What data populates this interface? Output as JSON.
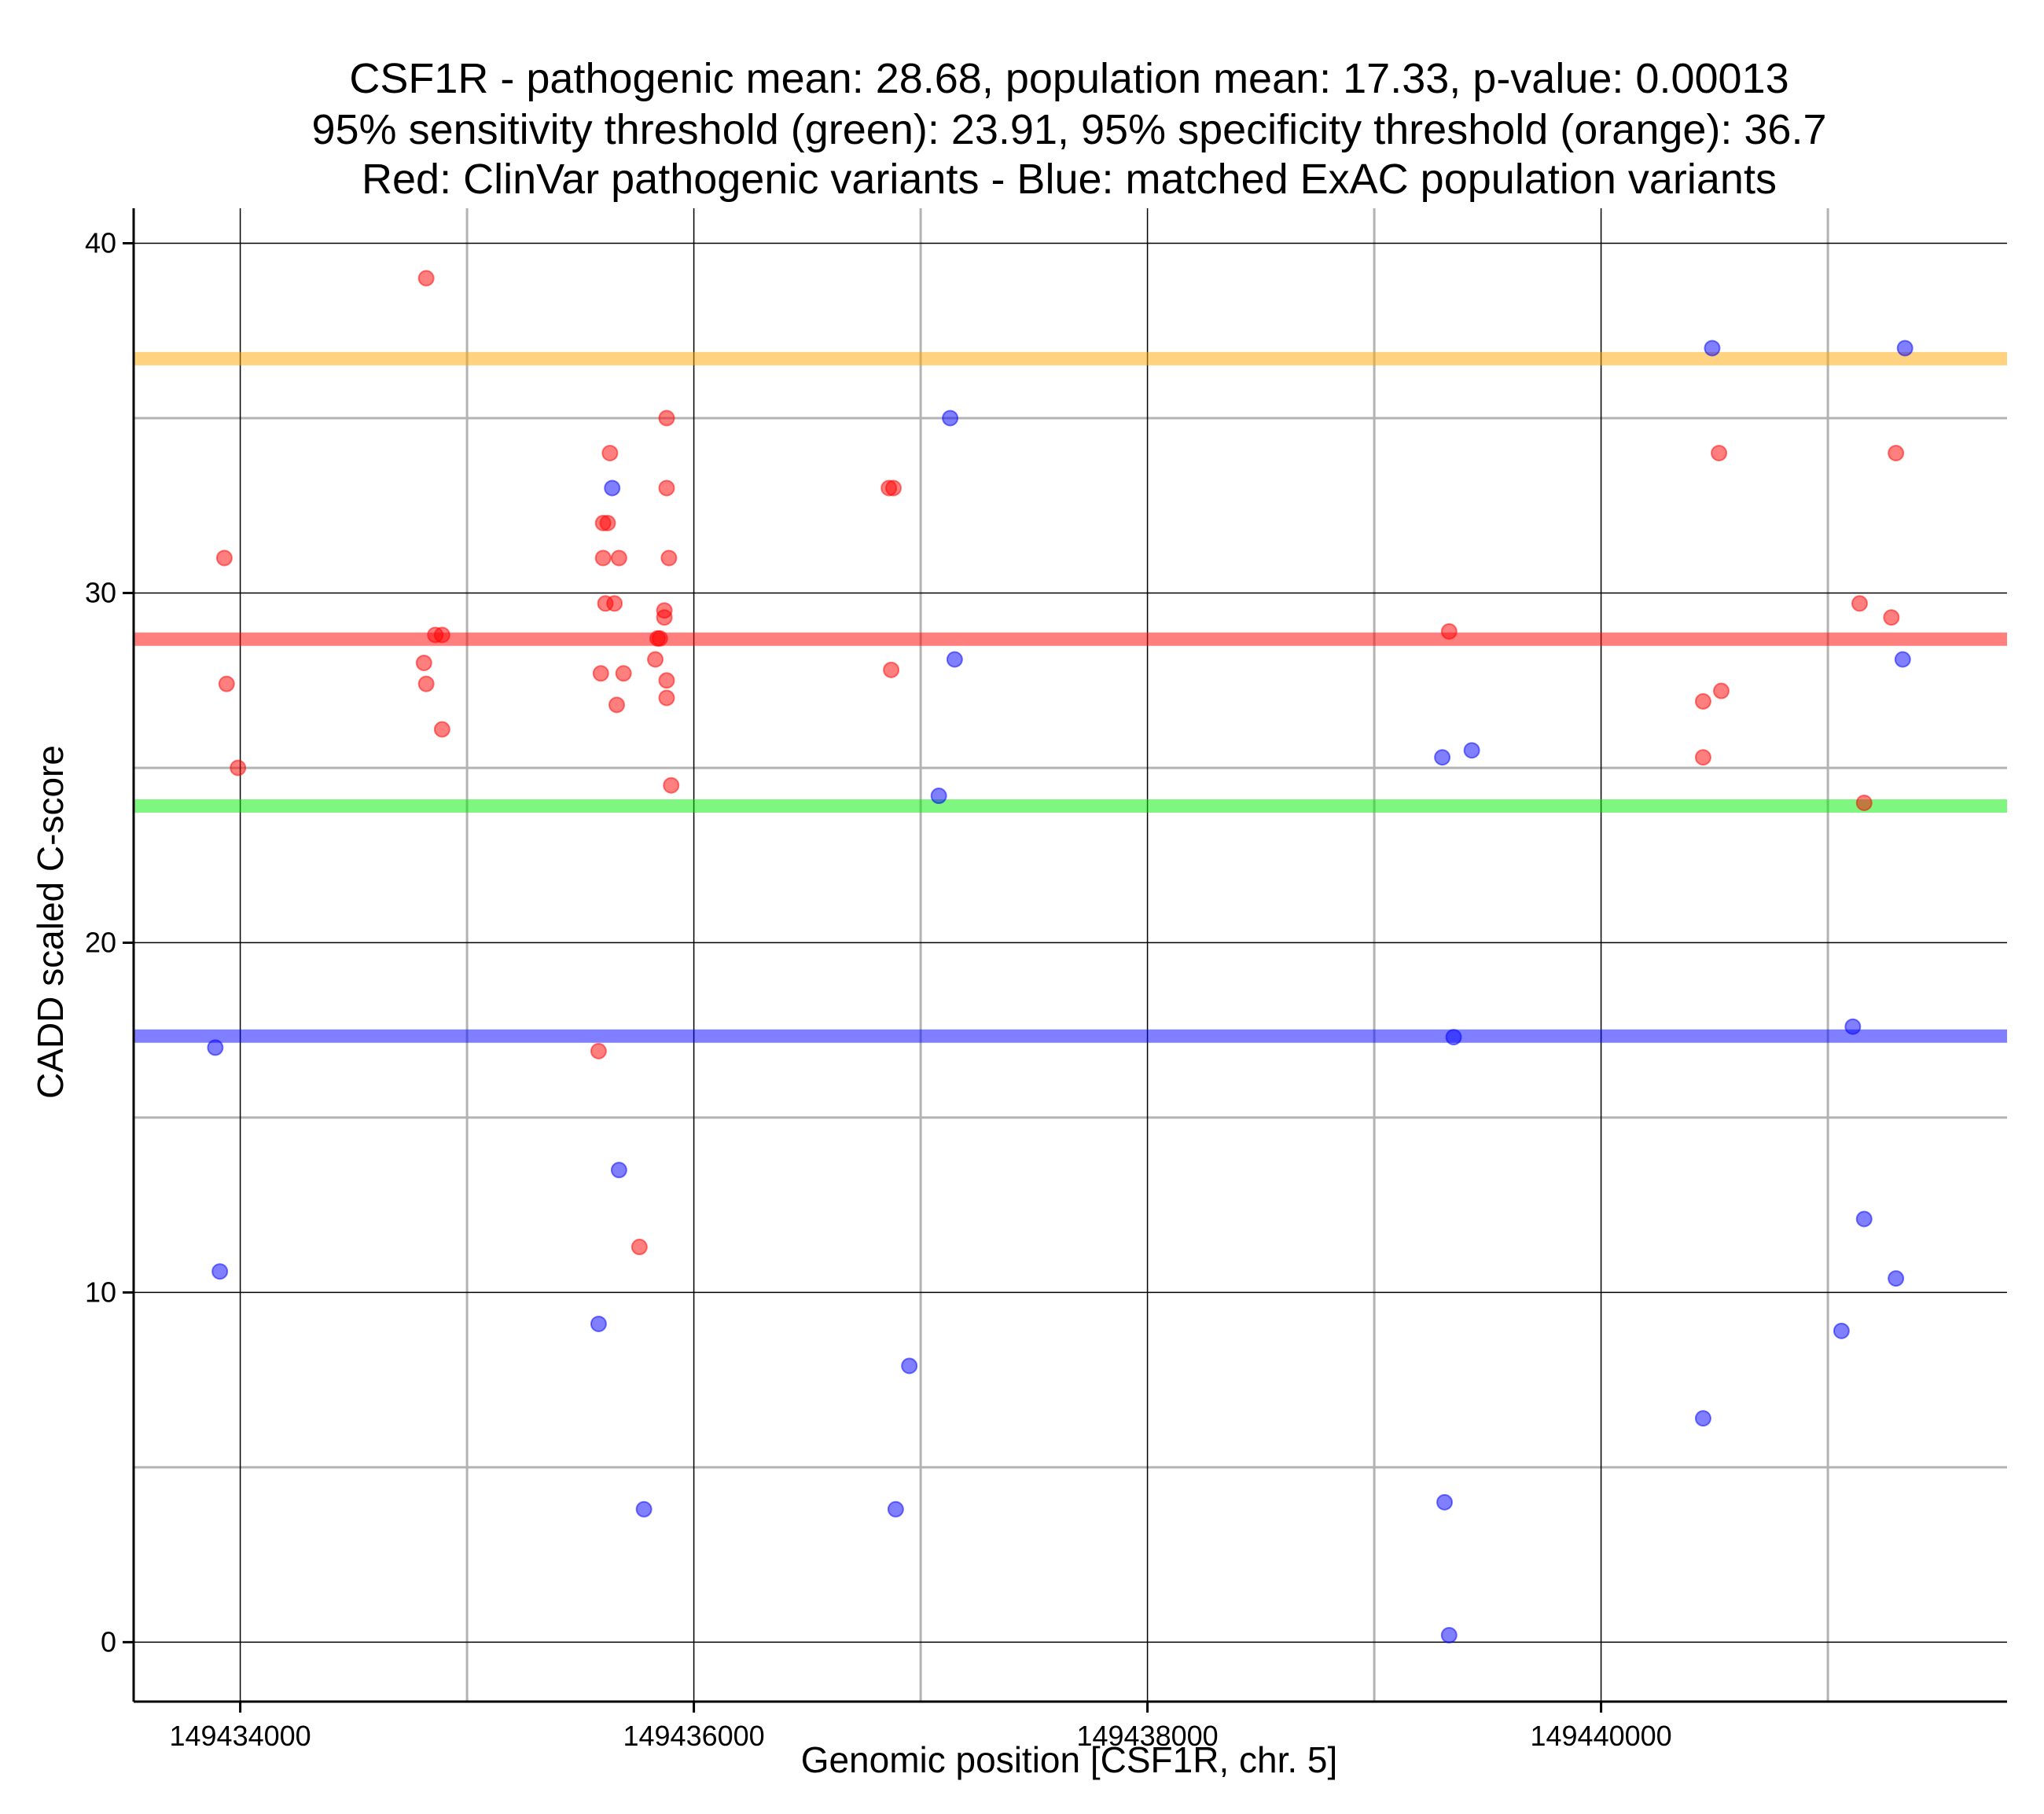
{
  "chart_data": {
    "type": "scatter",
    "title_lines": [
      "CSF1R - pathogenic mean: 28.68, population mean: 17.33, p-value: 0.00013",
      "95% sensitivity threshold (green): 23.91, 95% specificity threshold (orange): 36.7",
      "Red: ClinVar pathogenic variants - Blue: matched ExAC population variants"
    ],
    "xlabel": "Genomic position [CSF1R, chr. 5]",
    "ylabel": "CADD scaled C-score",
    "xlim": [
      149433530,
      149441790
    ],
    "ylim": [
      -1.7,
      41.0
    ],
    "x_ticks": [
      149434000,
      149436000,
      149438000,
      149440000
    ],
    "x_tick_labels": [
      "149434000",
      "149436000",
      "149438000",
      "149440000"
    ],
    "x_minor_grid": [
      149435000,
      149437000,
      149439000,
      149441000
    ],
    "y_ticks": [
      0,
      10,
      20,
      30,
      40
    ],
    "y_tick_labels": [
      "0",
      "10",
      "20",
      "30",
      "40"
    ],
    "y_minor_grid": [
      5,
      15,
      25,
      35
    ],
    "grid": true,
    "hlines": [
      {
        "name": "specificity threshold",
        "value": 36.7,
        "color": "#ffa500"
      },
      {
        "name": "pathogenic mean",
        "value": 28.68,
        "color": "#ff0000"
      },
      {
        "name": "sensitivity threshold",
        "value": 23.91,
        "color": "#00ee00"
      },
      {
        "name": "population mean",
        "value": 17.33,
        "color": "#0000ff"
      }
    ],
    "series": [
      {
        "name": "ClinVar pathogenic variants",
        "color": "#ff0000",
        "x": [
          149434820,
          149433930,
          149433940,
          149433990,
          149434810,
          149434820,
          149434860,
          149434890,
          149434890,
          149435630,
          149435600,
          149435620,
          149435600,
          149435670,
          149435610,
          149435650,
          149435590,
          149435690,
          149435660,
          149435580,
          149435760,
          149435880,
          149435880,
          149435890,
          149435870,
          149435870,
          149435840,
          149435830,
          149435850,
          149435880,
          149435880,
          149435900,
          149436860,
          149436880,
          149436870,
          149439330,
          149440520,
          149440450,
          149440530,
          149440450,
          149441140,
          149441300,
          149441280,
          149441160
        ],
        "y": [
          39.0,
          31.0,
          27.4,
          25.0,
          28.0,
          27.4,
          28.8,
          28.8,
          26.1,
          34.0,
          32.0,
          32.0,
          31.0,
          31.0,
          29.7,
          29.7,
          27.7,
          27.7,
          26.8,
          16.9,
          11.3,
          35.0,
          33.0,
          31.0,
          29.5,
          29.3,
          28.7,
          28.1,
          28.7,
          27.5,
          27.0,
          24.5,
          33.0,
          33.0,
          27.8,
          28.9,
          34.0,
          26.9,
          27.2,
          25.3,
          29.7,
          34.0,
          29.3,
          24.0
        ]
      },
      {
        "name": "matched ExAC population variants",
        "color": "#0000ff",
        "x": [
          149433890,
          149433910,
          149435640,
          149435670,
          149435580,
          149435780,
          149436950,
          149436890,
          149437130,
          149437150,
          149437080,
          149439300,
          149439430,
          149439350,
          149439310,
          149439330,
          149440490,
          149440450,
          149441340,
          149441330,
          149441110,
          149441160,
          149441300,
          149441060
        ],
        "y": [
          17.0,
          10.6,
          33.0,
          13.5,
          9.1,
          3.8,
          7.9,
          3.8,
          35.0,
          28.1,
          24.2,
          25.3,
          25.5,
          17.3,
          4.0,
          0.2,
          37.0,
          6.4,
          37.0,
          28.1,
          17.6,
          12.1,
          10.4,
          8.9
        ]
      }
    ]
  }
}
